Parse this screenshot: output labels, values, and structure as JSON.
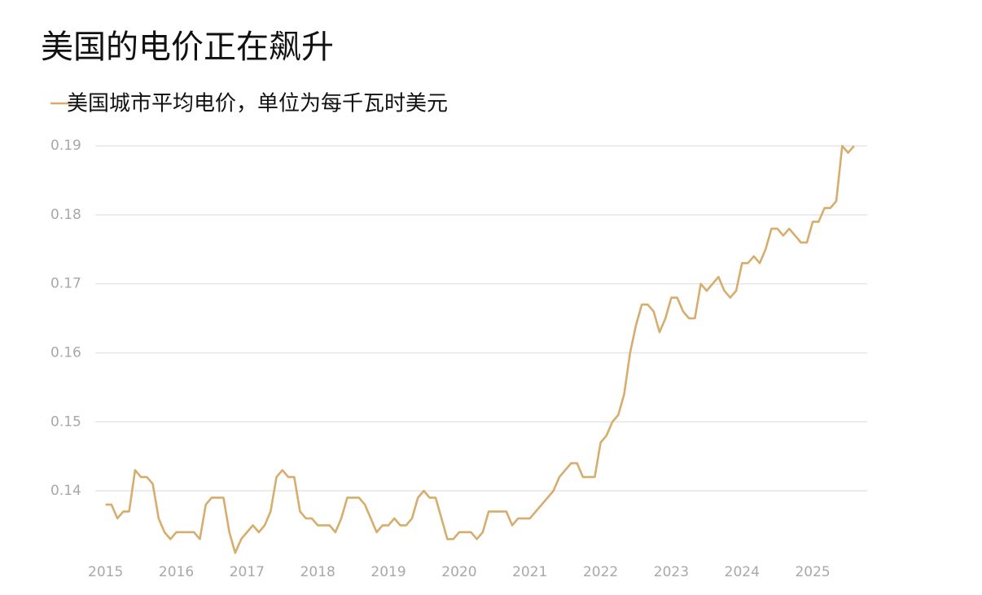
{
  "chart_data": {
    "type": "line",
    "title": "美国的电价正在飙升",
    "x": [
      2015,
      2015.083,
      2015.167,
      2015.25,
      2015.333,
      2015.417,
      2015.5,
      2015.583,
      2015.667,
      2015.75,
      2015.833,
      2015.917,
      2016,
      2016.083,
      2016.167,
      2016.25,
      2016.333,
      2016.417,
      2016.5,
      2016.583,
      2016.667,
      2016.75,
      2016.833,
      2016.917,
      2017,
      2017.083,
      2017.167,
      2017.25,
      2017.333,
      2017.417,
      2017.5,
      2017.583,
      2017.667,
      2017.75,
      2017.833,
      2017.917,
      2018,
      2018.083,
      2018.167,
      2018.25,
      2018.333,
      2018.417,
      2018.5,
      2018.583,
      2018.667,
      2018.75,
      2018.833,
      2018.917,
      2019,
      2019.083,
      2019.167,
      2019.25,
      2019.333,
      2019.417,
      2019.5,
      2019.583,
      2019.667,
      2019.75,
      2019.833,
      2019.917,
      2020,
      2020.083,
      2020.167,
      2020.25,
      2020.333,
      2020.417,
      2020.5,
      2020.583,
      2020.667,
      2020.75,
      2020.833,
      2020.917,
      2021,
      2021.083,
      2021.167,
      2021.25,
      2021.333,
      2021.417,
      2021.5,
      2021.583,
      2021.667,
      2021.75,
      2021.833,
      2021.917,
      2022,
      2022.083,
      2022.167,
      2022.25,
      2022.333,
      2022.417,
      2022.5,
      2022.583,
      2022.667,
      2022.75,
      2022.833,
      2022.917,
      2023,
      2023.083,
      2023.167,
      2023.25,
      2023.333,
      2023.417,
      2023.5,
      2023.583,
      2023.667,
      2023.75,
      2023.833,
      2023.917,
      2024,
      2024.083,
      2024.167,
      2024.25,
      2024.333,
      2024.417,
      2024.5,
      2024.583,
      2024.667,
      2024.75,
      2024.833,
      2024.917,
      2025,
      2025.083,
      2025.167,
      2025.25,
      2025.333,
      2025.417,
      2025.5,
      2025.583
    ],
    "series": [
      {
        "name": "美国城市平均电价，单位为每千瓦时美元",
        "color": "#d6ad6d",
        "values": [
          0.138,
          0.138,
          0.136,
          0.137,
          0.137,
          0.143,
          0.142,
          0.142,
          0.141,
          0.136,
          0.134,
          0.133,
          0.134,
          0.134,
          0.134,
          0.134,
          0.133,
          0.138,
          0.139,
          0.139,
          0.139,
          0.134,
          0.131,
          0.133,
          0.134,
          0.135,
          0.134,
          0.135,
          0.137,
          0.142,
          0.143,
          0.142,
          0.142,
          0.137,
          0.136,
          0.136,
          0.135,
          0.135,
          0.135,
          0.134,
          0.136,
          0.139,
          0.139,
          0.139,
          0.138,
          0.136,
          0.134,
          0.135,
          0.135,
          0.136,
          0.135,
          0.135,
          0.136,
          0.139,
          0.14,
          0.139,
          0.139,
          0.136,
          0.133,
          0.133,
          0.134,
          0.134,
          0.134,
          0.133,
          0.134,
          0.137,
          0.137,
          0.137,
          0.137,
          0.135,
          0.136,
          0.136,
          0.136,
          0.137,
          0.138,
          0.139,
          0.14,
          0.142,
          0.143,
          0.144,
          0.144,
          0.142,
          0.142,
          0.142,
          0.147,
          0.148,
          0.15,
          0.151,
          0.154,
          0.16,
          0.164,
          0.167,
          0.167,
          0.166,
          0.163,
          0.165,
          0.168,
          0.168,
          0.166,
          0.165,
          0.165,
          0.17,
          0.169,
          0.17,
          0.171,
          0.169,
          0.168,
          0.169,
          0.173,
          0.173,
          0.174,
          0.173,
          0.175,
          0.178,
          0.178,
          0.177,
          0.178,
          0.177,
          0.176,
          0.176,
          0.179,
          0.179,
          0.181,
          0.181,
          0.182,
          0.19,
          0.189,
          0.19
        ]
      }
    ],
    "xlim": [
      2014.9,
      2025.77
    ],
    "xticks": [
      2015,
      2016,
      2017,
      2018,
      2019,
      2020,
      2021,
      2022,
      2023,
      2024,
      2025
    ],
    "ylim": [
      0.1295,
      0.1905
    ],
    "yticks": [
      0.14,
      0.15,
      0.16,
      0.17,
      0.18,
      0.19
    ],
    "grid": true
  }
}
